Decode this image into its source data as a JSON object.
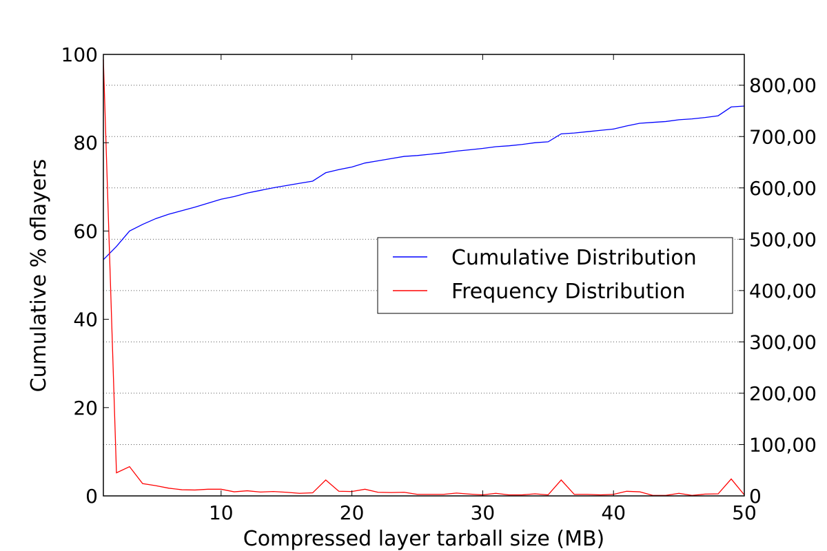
{
  "chart_data": {
    "type": "line",
    "title": "",
    "xlabel": "Compressed layer tarball size (MB)",
    "ylabel_left": "Cumulative % oflayers",
    "ylabel_right": "",
    "xlim": [
      1,
      50
    ],
    "ylim_left": [
      0,
      100
    ],
    "ylim_right": [
      0,
      860000
    ],
    "x_ticks": [
      10,
      20,
      30,
      40,
      50
    ],
    "y_left_ticks": [
      0,
      20,
      40,
      60,
      80,
      100
    ],
    "y_right_ticks": [
      0,
      100000,
      200000,
      300000,
      400000,
      500000,
      600000,
      700000,
      800000
    ],
    "x_tick_labels": [
      "10",
      "20",
      "30",
      "40",
      "50"
    ],
    "y_left_tick_labels": [
      "0",
      "20",
      "40",
      "60",
      "80",
      "100"
    ],
    "y_right_tick_labels": [
      "0",
      "100,00",
      "200,00",
      "300,00",
      "400,00",
      "500,00",
      "600,00",
      "700,00",
      "800,00"
    ],
    "grid": "horizontal dotted at right-axis ticks",
    "legend_position": "center-right",
    "x": [
      1,
      2,
      3,
      4,
      5,
      6,
      7,
      8,
      9,
      10,
      11,
      12,
      13,
      14,
      15,
      16,
      17,
      18,
      19,
      20,
      21,
      22,
      23,
      24,
      25,
      26,
      27,
      28,
      29,
      30,
      31,
      32,
      33,
      34,
      35,
      36,
      37,
      38,
      39,
      40,
      41,
      42,
      43,
      44,
      45,
      46,
      47,
      48,
      49,
      50
    ],
    "series": [
      {
        "name": "Cumulative Distribution",
        "axis": "left",
        "color": "#0000ff",
        "values": [
          53.5,
          56.5,
          60,
          61.5,
          62.8,
          63.8,
          64.6,
          65.4,
          66.3,
          67.2,
          67.8,
          68.6,
          69.2,
          69.8,
          70.3,
          70.8,
          71.3,
          73.2,
          73.9,
          74.5,
          75.4,
          75.9,
          76.4,
          76.9,
          77.1,
          77.4,
          77.7,
          78.1,
          78.4,
          78.7,
          79.1,
          79.3,
          79.6,
          80,
          80.2,
          82,
          82.2,
          82.5,
          82.8,
          83.1,
          83.8,
          84.4,
          84.6,
          84.8,
          85.2,
          85.4,
          85.7,
          86.1,
          88.1,
          88.3
        ]
      },
      {
        "name": "Frequency Distribution",
        "axis": "right",
        "color": "#ff0000",
        "values": [
          850000,
          45000,
          57000,
          24000,
          20000,
          15000,
          12000,
          11500,
          13000,
          13000,
          8000,
          10000,
          7500,
          8500,
          7000,
          5000,
          6000,
          31000,
          9000,
          8500,
          13000,
          7000,
          6500,
          7000,
          3000,
          3000,
          3000,
          5500,
          3500,
          2000,
          5000,
          2000,
          2000,
          4000,
          2000,
          31000,
          3000,
          3000,
          2000,
          3000,
          9000,
          8000,
          1000,
          1000,
          5000,
          1000,
          3500,
          4000,
          33000,
          2000
        ]
      }
    ]
  }
}
